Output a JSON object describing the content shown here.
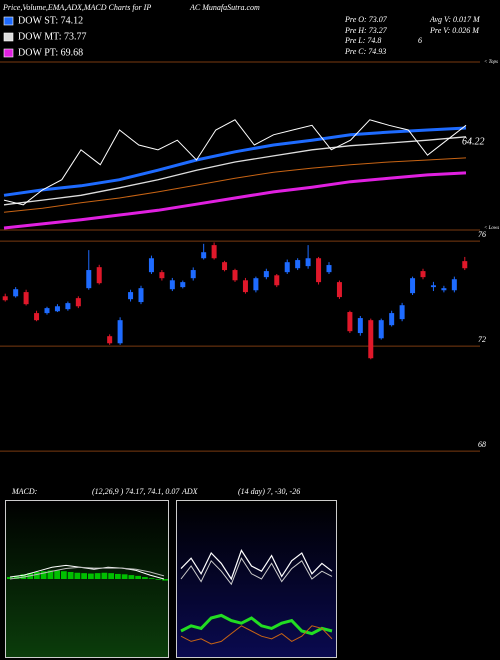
{
  "header": {
    "title_left": "Price,Volume,EMA,ADX,MACD Charts for IP",
    "title_right": "AC MunafaSutra.com",
    "pre": [
      "Pre  O: 73.07",
      "Avg V: 0.017 M",
      "Pre  H: 73.27",
      "Pre  V: 0.026  M",
      "Pre  L: 74.8",
      "6",
      "Pre  C: 74.93"
    ]
  },
  "chart_data": [
    {
      "type": "line",
      "ylim": [
        55,
        80
      ],
      "annotations": [
        "64.22",
        "< Tops",
        "< Lows"
      ],
      "series": [
        {
          "name": "DOW ST: 74.12",
          "color": "#1e6bff",
          "values": [
            60.1,
            60.9,
            61.5,
            62.4,
            63.8,
            65.3,
            66.5,
            67.5,
            68.2,
            69.0,
            69.4,
            69.7,
            70.0
          ]
        },
        {
          "name": "DOW MT: 73.77",
          "color": "#dddddd",
          "values": [
            58.7,
            59.4,
            60.1,
            61.2,
            62.4,
            63.8,
            65.0,
            65.9,
            66.8,
            67.4,
            67.8,
            68.2,
            68.7
          ]
        },
        {
          "color": "#c86414",
          "values": [
            57.6,
            58.2,
            59.0,
            59.7,
            60.6,
            61.6,
            62.6,
            63.5,
            64.1,
            64.6,
            65.0,
            65.3,
            65.6
          ]
        },
        {
          "name": "DOW PT: 69.68",
          "color": "#e020e0",
          "values": [
            55.3,
            55.9,
            56.5,
            57.2,
            57.9,
            58.8,
            59.7,
            60.6,
            61.3,
            62.1,
            62.6,
            63.1,
            63.4
          ]
        },
        {
          "color": "#ffffff",
          "values": [
            59.4,
            58.7,
            60.9,
            62.4,
            66.8,
            64.6,
            69.7,
            67.5,
            66.8,
            68.2,
            65.3,
            69.7,
            71.2,
            67.5,
            69.0,
            69.7,
            70.4,
            66.8,
            68.2,
            71.2,
            70.4,
            69.7,
            66.0,
            68.2,
            70.4
          ]
        }
      ]
    },
    {
      "type": "candlestick",
      "ylim": [
        66.9,
        76.35
      ],
      "yticks": [
        76,
        72,
        68
      ],
      "up_color": "#1e6bff",
      "down_color": "#e0182a",
      "grid_color": "#7a3a10",
      "open": [
        73.9,
        73.9,
        74.06,
        73.26,
        73.26,
        73.33,
        73.41,
        73.83,
        74.21,
        75.01,
        72.38,
        72.11,
        73.79,
        73.68,
        74.82,
        74.82,
        74.17,
        74.25,
        74.59,
        75.35,
        75.85,
        75.2,
        74.9,
        74.51,
        74.13,
        74.63,
        74.7,
        74.82,
        74.97,
        75.05,
        75.35,
        74.82,
        74.44,
        73.3,
        72.5,
        72.99,
        72.3,
        72.8,
        73.03,
        74.02,
        74.86,
        74.25,
        74.13,
        74.13,
        75.24
      ],
      "high": [
        74.0,
        74.25,
        74.15,
        73.35,
        73.5,
        73.6,
        73.7,
        73.9,
        75.66,
        75.1,
        72.45,
        73.1,
        74.15,
        74.3,
        75.45,
        74.9,
        74.6,
        74.5,
        75.0,
        75.9,
        75.95,
        75.25,
        74.95,
        74.6,
        74.65,
        74.95,
        74.75,
        75.3,
        75.35,
        75.85,
        75.4,
        75.2,
        74.5,
        73.35,
        73.15,
        73.05,
        73.05,
        73.35,
        73.65,
        74.65,
        74.95,
        74.45,
        74.3,
        74.65,
        75.4
      ],
      "low": [
        73.7,
        73.85,
        73.55,
        72.95,
        73.2,
        73.3,
        73.35,
        73.45,
        74.15,
        74.35,
        72.05,
        72.05,
        73.7,
        73.6,
        74.75,
        74.5,
        74.1,
        74.2,
        74.5,
        75.3,
        75.3,
        74.85,
        74.45,
        74.0,
        74.05,
        74.55,
        74.25,
        74.75,
        74.9,
        74.95,
        74.35,
        74.75,
        73.8,
        72.5,
        72.4,
        71.5,
        72.25,
        72.75,
        72.95,
        73.95,
        74.55,
        74.1,
        74.05,
        74.05,
        74.9
      ],
      "close": [
        73.75,
        74.17,
        73.6,
        72.99,
        73.45,
        73.52,
        73.64,
        73.52,
        74.9,
        74.4,
        72.11,
        72.99,
        74.06,
        74.21,
        75.35,
        74.59,
        74.51,
        74.44,
        74.9,
        75.58,
        75.35,
        74.9,
        74.51,
        74.06,
        74.59,
        74.86,
        74.32,
        75.2,
        75.28,
        75.35,
        74.44,
        75.09,
        73.87,
        72.57,
        73.07,
        71.54,
        72.99,
        73.26,
        73.56,
        74.59,
        74.63,
        74.32,
        74.21,
        74.55,
        74.97
      ]
    },
    {
      "type": "line",
      "title": "MACD:",
      "subtitle": "(12,26,9 ) 74.17, 74.1, 0.07",
      "ylim": [
        -2,
        2
      ],
      "histogram": {
        "color": "#00c000",
        "values": [
          0.05,
          0.08,
          0.12,
          0.15,
          0.18,
          0.2,
          0.22,
          0.22,
          0.2,
          0.18,
          0.16,
          0.15,
          0.14,
          0.15,
          0.16,
          0.15,
          0.13,
          0.12,
          0.1,
          0.08,
          0.05,
          0.02,
          -0.02,
          -0.04
        ]
      },
      "series": [
        {
          "color": "#ffffff",
          "values": [
            0.05,
            0.1,
            0.2,
            0.3,
            0.35,
            0.3,
            0.25,
            0.3,
            0.28,
            0.22,
            0.1,
            0.0
          ]
        },
        {
          "color": "#bbbbbb",
          "values": [
            0.0,
            0.05,
            0.12,
            0.2,
            0.27,
            0.3,
            0.28,
            0.28,
            0.28,
            0.25,
            0.18,
            0.08
          ]
        }
      ]
    },
    {
      "type": "line",
      "title": "ADX",
      "subtitle": "(14 day) 7, -30, -26",
      "ylim": [
        0,
        60
      ],
      "series": [
        {
          "color": "#ffffff",
          "values": [
            34,
            38,
            32,
            40,
            36,
            30,
            41,
            35,
            33,
            39,
            31,
            37,
            40,
            32,
            36,
            33
          ]
        },
        {
          "color": "#cccccc",
          "values": [
            30,
            35,
            29,
            37,
            33,
            28,
            38,
            32,
            30,
            36,
            29,
            34,
            37,
            30,
            33,
            31
          ]
        },
        {
          "color": "#22dd22",
          "values": [
            10,
            12,
            11,
            15,
            16,
            14,
            13,
            15,
            12,
            11,
            13,
            14,
            10,
            9,
            11,
            10
          ]
        },
        {
          "color": "#c86414",
          "values": [
            8,
            6,
            7,
            5,
            6,
            9,
            12,
            10,
            8,
            7,
            9,
            6,
            8,
            12,
            11,
            7
          ]
        }
      ]
    }
  ]
}
